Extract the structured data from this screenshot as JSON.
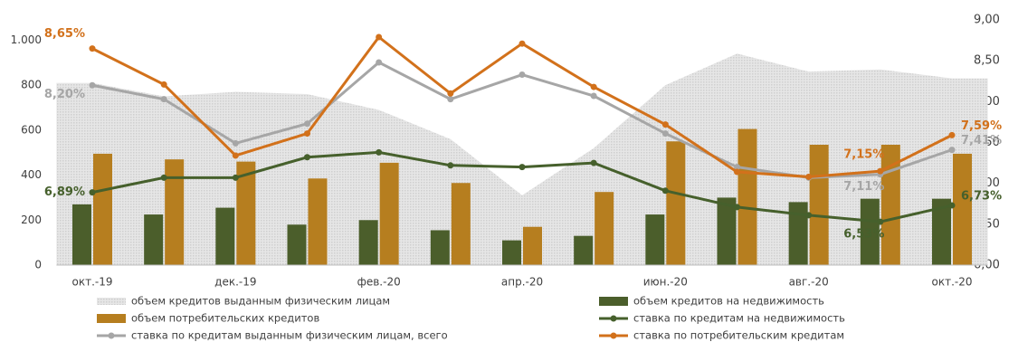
{
  "chart_data": {
    "type": "combo",
    "categories": [
      "окт.-19",
      null,
      "дек.-19",
      null,
      "фев.-20",
      null,
      "апр.-20",
      null,
      "июн.-20",
      null,
      "авг.-20",
      null,
      "окт.-20"
    ],
    "ylim": [
      0,
      1090
    ],
    "yticks": [
      0,
      200,
      400,
      600,
      800,
      {
        "value": 1000,
        "label": "1.000"
      }
    ],
    "y2lim": [
      6,
      9
    ],
    "y2ticks": [
      {
        "value": 6,
        "label": "6,00"
      },
      {
        "value": 6.5,
        "label": "6,50"
      },
      {
        "value": 7,
        "label": "7,00"
      },
      {
        "value": 7.5,
        "label": "7,50"
      },
      {
        "value": 8,
        "label": "8,00"
      },
      {
        "value": 8.5,
        "label": "8,50"
      },
      {
        "value": 9,
        "label": "9,00"
      }
    ],
    "series": [
      {
        "name": "объем кредитов выданным физическим лицам",
        "type": "area",
        "color": "#d4d4d4",
        "values": [
          810,
          750,
          770,
          760,
          690,
          560,
          310,
          520,
          800,
          940,
          860,
          870,
          830
        ]
      },
      {
        "name": "объем кредитов на недвижимость",
        "type": "bar",
        "color": "#4b5e2b",
        "values": [
          270,
          225,
          255,
          180,
          200,
          155,
          110,
          130,
          225,
          300,
          280,
          295,
          295
        ]
      },
      {
        "name": "объем потребительских кредитов",
        "type": "bar",
        "color": "#b67e1f",
        "values": [
          495,
          470,
          460,
          385,
          455,
          365,
          170,
          325,
          550,
          605,
          535,
          535,
          495
        ]
      },
      {
        "name": "ставка по кредитам на недвижимость",
        "type": "line",
        "axis": "y2",
        "color": "#46602c",
        "values": [
          6.89,
          7.07,
          7.07,
          7.32,
          7.38,
          7.22,
          7.2,
          7.25,
          6.91,
          6.71,
          6.61,
          6.53,
          6.73
        ],
        "value_labels": [
          "6,89%",
          null,
          null,
          null,
          null,
          null,
          null,
          null,
          null,
          null,
          null,
          "6,53%",
          "6,73%"
        ]
      },
      {
        "name": "ставка по кредитам выданным физическим лицам, всего",
        "type": "line",
        "axis": "y2",
        "color": "#a6a6a6",
        "values": [
          8.2,
          8.03,
          7.49,
          7.73,
          8.48,
          8.03,
          8.33,
          8.07,
          7.61,
          7.2,
          7.07,
          7.11,
          7.41
        ],
        "value_labels": [
          "8,20%",
          null,
          null,
          null,
          null,
          null,
          null,
          null,
          null,
          null,
          null,
          "7,11%",
          "7,41%"
        ]
      },
      {
        "name": "ставка по потребительским кредитам",
        "type": "line",
        "axis": "y2",
        "color": "#d2711b",
        "values": [
          8.65,
          8.21,
          7.34,
          7.61,
          8.79,
          8.1,
          8.71,
          8.18,
          7.72,
          7.14,
          7.08,
          7.15,
          7.59
        ],
        "value_labels": [
          "8,65%",
          null,
          null,
          null,
          null,
          null,
          null,
          null,
          null,
          null,
          null,
          "7,15%",
          "7,59%"
        ]
      }
    ]
  }
}
